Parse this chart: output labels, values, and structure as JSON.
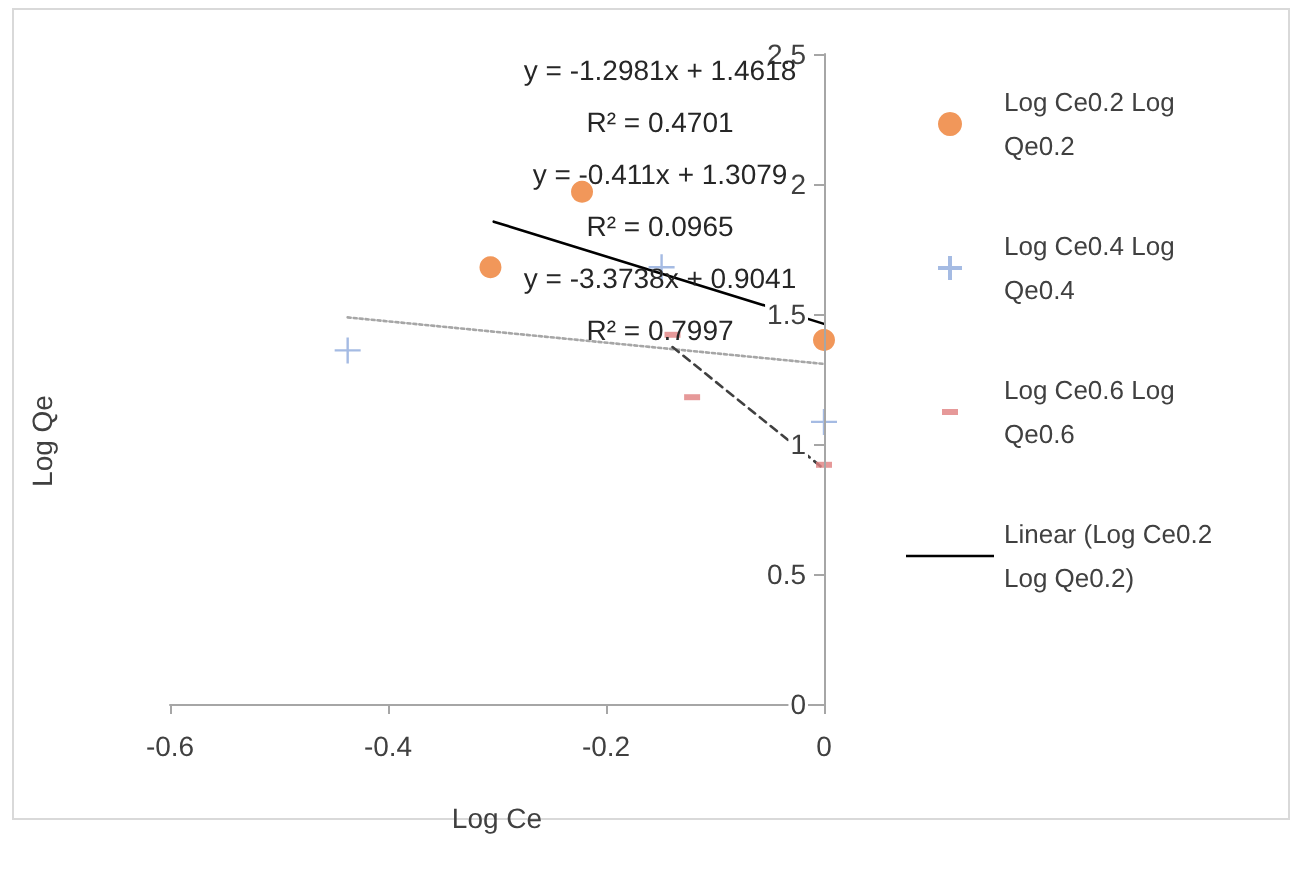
{
  "chart_data": {
    "type": "scatter",
    "xlabel": "Log Ce",
    "ylabel": "Log Qe",
    "xlim": [
      -0.6,
      0
    ],
    "xticks": [
      -0.6,
      -0.4,
      -0.2,
      0
    ],
    "ylim": [
      0,
      2.5
    ],
    "yticks": [
      0,
      0.5,
      1,
      1.5,
      2,
      2.5
    ],
    "grid": false,
    "legend": "right",
    "series": [
      {
        "name": "Log Ce0.2 Log Qe0.2",
        "marker": "circle",
        "color": "#ed7d31",
        "x": [
          -0.222,
          -0.306,
          0
        ],
        "values": [
          1.97,
          1.68,
          1.4
        ]
      },
      {
        "name": "Log Ce0.4 Log Qe0.4",
        "marker": "cross",
        "color": "#8faadc",
        "x": [
          -0.437,
          -0.149,
          0
        ],
        "values": [
          1.36,
          1.68,
          1.085
        ]
      },
      {
        "name": "Log Ce0.6 Log Qe0.6",
        "marker": "square",
        "color": "#e08080",
        "x": [
          -0.139,
          -0.121,
          0
        ],
        "values": [
          1.42,
          1.18,
          0.92
        ]
      },
      {
        "name": "Linear (Log Ce0.2 Log Qe0.2)",
        "type": "line",
        "marker": "none",
        "line_style": "solid",
        "color": "#000000",
        "x": [
          -0.303,
          0
        ],
        "values": [
          1.855,
          1.462
        ]
      },
      {
        "type": "line",
        "marker": "none",
        "line_style": "dotted",
        "color": "#a6a6a6",
        "x": [
          -0.437,
          0
        ],
        "values": [
          1.487,
          1.308
        ]
      },
      {
        "type": "line",
        "marker": "none",
        "line_style": "dashed",
        "color": "#404040",
        "x": [
          -0.139,
          0
        ],
        "values": [
          1.373,
          0.904
        ]
      }
    ],
    "annotations": [
      "y = -1.2981x + 1.4618",
      "R² = 0.4701",
      "y = -0.411x + 1.3079",
      "R² = 0.0965",
      "y = -3.3738x + 0.9041",
      "R² = 0.7997"
    ]
  }
}
